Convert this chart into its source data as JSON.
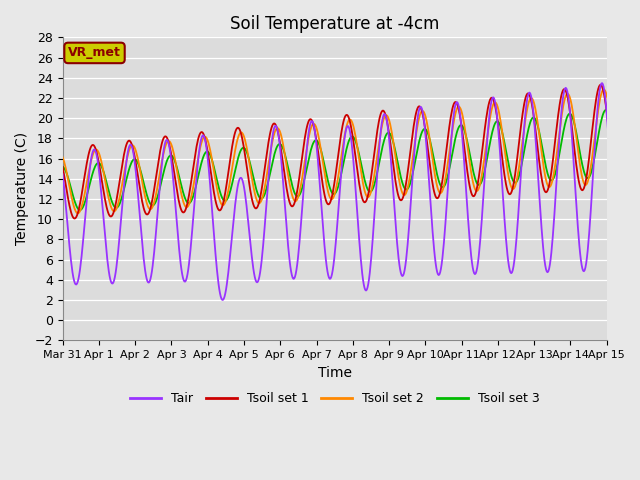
{
  "title": "Soil Temperature at -4cm",
  "xlabel": "Time",
  "ylabel": "Temperature (C)",
  "ylim": [
    -2,
    28
  ],
  "yticks": [
    -2,
    0,
    2,
    4,
    6,
    8,
    10,
    12,
    14,
    16,
    18,
    20,
    22,
    24,
    26,
    28
  ],
  "x_tick_labels": [
    "Mar 31",
    "Apr 1",
    "Apr 2",
    "Apr 3",
    "Apr 4",
    "Apr 5",
    "Apr 6",
    "Apr 7",
    "Apr 8",
    "Apr 9",
    "Apr 10",
    "Apr 11",
    "Apr 12",
    "Apr 13",
    "Apr 14",
    "Apr 15"
  ],
  "x_tick_positions": [
    0,
    1,
    2,
    3,
    4,
    5,
    6,
    7,
    8,
    9,
    10,
    11,
    12,
    13,
    14,
    15
  ],
  "colors": {
    "Tair": "#9933ff",
    "Tsoil1": "#cc0000",
    "Tsoil2": "#ff8800",
    "Tsoil3": "#00bb00"
  },
  "bg_color": "#e8e8e8",
  "plot_bg": "#dcdcdc",
  "legend_box_fill": "#cccc00",
  "legend_box_edge": "#8B0000",
  "legend_box_text": "VR_met",
  "title_fontsize": 12,
  "axis_label_fontsize": 10,
  "n_days": 16
}
